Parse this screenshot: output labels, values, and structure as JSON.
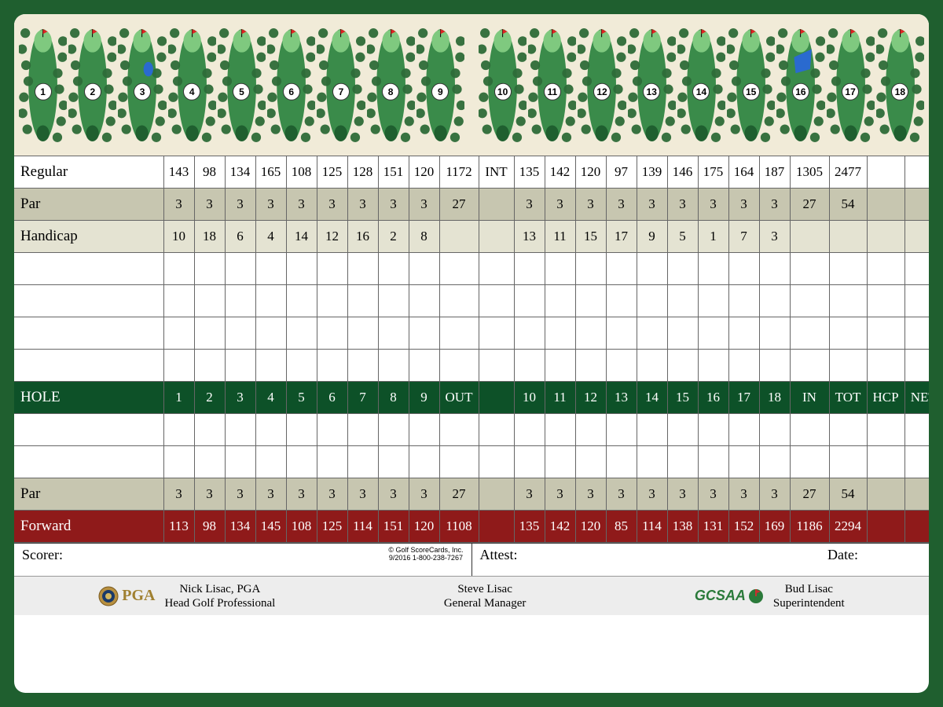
{
  "holes": [
    1,
    2,
    3,
    4,
    5,
    6,
    7,
    8,
    9,
    10,
    11,
    12,
    13,
    14,
    15,
    16,
    17,
    18
  ],
  "header_labels": {
    "regular": "Regular",
    "par": "Par",
    "handicap": "Handicap",
    "hole": "HOLE",
    "forward": "Forward",
    "out": "OUT",
    "in": "IN",
    "tot": "TOT",
    "hcp": "HCP",
    "net": "NET",
    "int": "INT"
  },
  "regular": {
    "front": [
      143,
      98,
      134,
      165,
      108,
      125,
      128,
      151,
      120
    ],
    "out": 1172,
    "back": [
      135,
      142,
      120,
      97,
      139,
      146,
      175,
      164,
      187
    ],
    "in": 1305,
    "tot": 2477
  },
  "par": {
    "front": [
      3,
      3,
      3,
      3,
      3,
      3,
      3,
      3,
      3
    ],
    "out": 27,
    "back": [
      3,
      3,
      3,
      3,
      3,
      3,
      3,
      3,
      3
    ],
    "in": 27,
    "tot": 54
  },
  "handicap": {
    "front": [
      10,
      18,
      6,
      4,
      14,
      12,
      16,
      2,
      8
    ],
    "back": [
      13,
      11,
      15,
      17,
      9,
      5,
      1,
      7,
      3
    ]
  },
  "par2": {
    "front": [
      3,
      3,
      3,
      3,
      3,
      3,
      3,
      3,
      3
    ],
    "out": 27,
    "back": [
      3,
      3,
      3,
      3,
      3,
      3,
      3,
      3,
      3
    ],
    "in": 27,
    "tot": 54
  },
  "forward": {
    "front": [
      113,
      98,
      134,
      145,
      108,
      125,
      114,
      151,
      120
    ],
    "out": 1108,
    "back": [
      135,
      142,
      120,
      85,
      114,
      138,
      131,
      152,
      169
    ],
    "in": 1186,
    "tot": 2294
  },
  "signature": {
    "scorer": "Scorer:",
    "attest": "Attest:",
    "date": "Date:"
  },
  "copyright": {
    "line1": "© Golf ScoreCards, Inc.",
    "line2": "9/2016   1-800-238-7267"
  },
  "footer": {
    "pga": "PGA",
    "pro_name": "Nick Lisac, PGA",
    "pro_title": "Head Golf Professional",
    "gm_name": "Steve Lisac",
    "gm_title": "General Manager",
    "gcsaa": "GCSAA",
    "super_name": "Bud Lisac",
    "super_title": "Superintendent"
  },
  "colors": {
    "frame": "#1f5f2f",
    "hole_row": "#0d5128",
    "forward_row": "#8f1a1a",
    "par_row": "#c7c6b0",
    "hcp_row": "#e4e3d2",
    "strip": "#f1ebd8",
    "fairway": "#3a8b4a",
    "green_dark": "#1f5f2f",
    "tree": "#2d6b38"
  }
}
